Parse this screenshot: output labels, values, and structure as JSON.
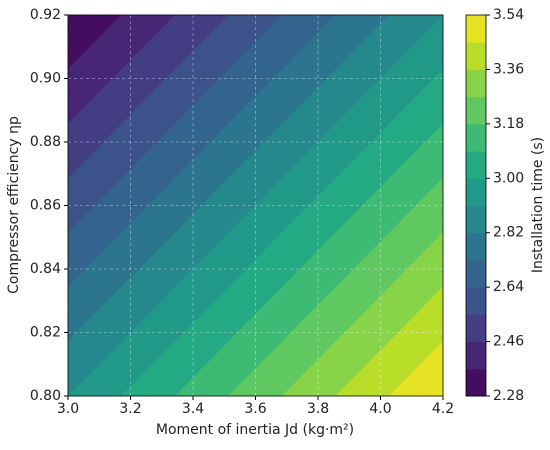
{
  "chart_data": {
    "type": "contourf",
    "xlabel": "Moment of inertia Jd (kg·m²)",
    "ylabel": "Compressor efficiency ηp",
    "colorbar_label": "Installation time (s)",
    "x": [
      3.0,
      3.2,
      3.4,
      3.6,
      3.8,
      4.0,
      4.2
    ],
    "y": [
      0.8,
      0.82,
      0.84,
      0.86,
      0.88,
      0.9,
      0.92
    ],
    "z": [
      [
        2.91,
        3.015,
        3.12,
        3.225,
        3.33,
        3.435,
        3.54
      ],
      [
        2.805,
        2.91,
        3.015,
        3.12,
        3.225,
        3.33,
        3.435
      ],
      [
        2.7,
        2.805,
        2.91,
        3.015,
        3.12,
        3.225,
        3.33
      ],
      [
        2.595,
        2.7,
        2.805,
        2.91,
        3.015,
        3.12,
        3.225
      ],
      [
        2.49,
        2.595,
        2.7,
        2.805,
        2.91,
        3.015,
        3.12
      ],
      [
        2.385,
        2.49,
        2.595,
        2.7,
        2.805,
        2.91,
        3.015
      ],
      [
        2.28,
        2.385,
        2.49,
        2.595,
        2.7,
        2.805,
        2.91
      ]
    ],
    "xlim": [
      3.0,
      4.2
    ],
    "ylim": [
      0.8,
      0.92
    ],
    "zlim": [
      2.28,
      3.54
    ],
    "levels": 14,
    "colormap": "viridis",
    "grid": true,
    "xticks": [
      {
        "value": 3.0,
        "label": "3.0"
      },
      3.2,
      3.4,
      3.6,
      3.8,
      {
        "value": 4.0,
        "label": "4.0"
      },
      4.2
    ],
    "yticks": [
      {
        "value": 0.8,
        "label": "0.80"
      },
      0.82,
      0.84,
      0.86,
      0.88,
      {
        "value": 0.9,
        "label": "0.90"
      },
      0.92
    ],
    "zticks": [
      2.28,
      2.46,
      2.64,
      2.82,
      {
        "value": 3.0,
        "label": "3.00"
      },
      3.18,
      3.36,
      3.54
    ]
  }
}
